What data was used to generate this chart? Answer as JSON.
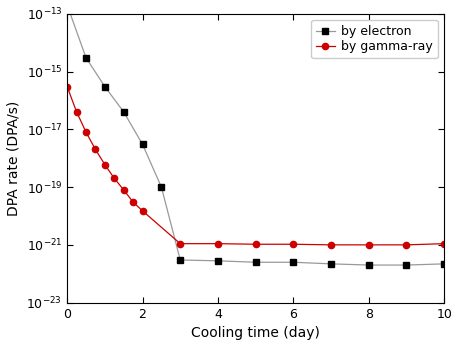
{
  "electron_x": [
    0,
    0.5,
    1.0,
    1.5,
    2.0,
    2.5,
    3.0,
    4.0,
    5.0,
    6.0,
    7.0,
    8.0,
    9.0,
    10.0
  ],
  "electron_y": [
    2e-13,
    3e-15,
    3e-16,
    4e-17,
    3e-18,
    1e-19,
    3e-22,
    2.8e-22,
    2.5e-22,
    2.5e-22,
    2.2e-22,
    2e-22,
    2e-22,
    2.2e-22
  ],
  "gamma_x": [
    0,
    0.25,
    0.5,
    0.75,
    1.0,
    1.25,
    1.5,
    1.75,
    2.0,
    3.0,
    4.0,
    5.0,
    6.0,
    7.0,
    8.0,
    9.0,
    10.0
  ],
  "gamma_y": [
    3e-16,
    4e-17,
    8e-18,
    2e-18,
    6e-19,
    2e-19,
    8e-20,
    3e-20,
    1.5e-20,
    1.1e-21,
    1.1e-21,
    1.05e-21,
    1.05e-21,
    1e-21,
    1e-21,
    1e-21,
    1.1e-21
  ],
  "electron_color": "#999999",
  "gamma_color": "#cc0000",
  "electron_label": "by electron",
  "gamma_label": "by gamma-ray",
  "xlabel": "Cooling time (day)",
  "ylabel": "DPA rate (DPA/s)",
  "xlim": [
    0,
    10
  ],
  "ylim_log_min": -23,
  "ylim_log_max": -13,
  "background_color": "#ffffff",
  "legend_fontsize": 9,
  "axis_fontsize": 10
}
